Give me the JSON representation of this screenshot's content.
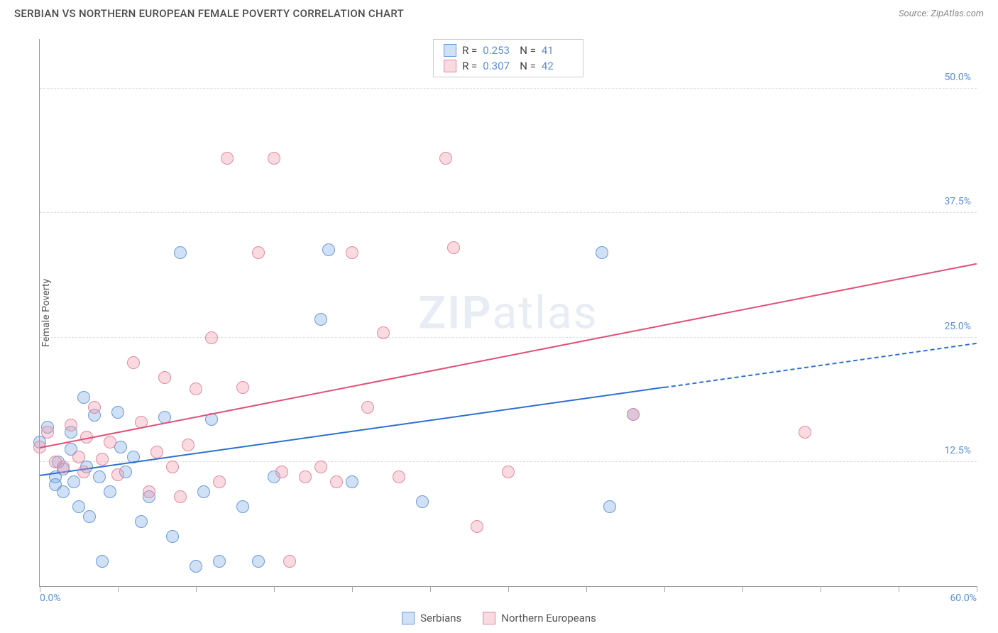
{
  "title": "SERBIAN VS NORTHERN EUROPEAN FEMALE POVERTY CORRELATION CHART",
  "source_label": "Source: ZipAtlas.com",
  "watermark": {
    "bold": "ZIP",
    "light": "atlas"
  },
  "ylabel": "Female Poverty",
  "chart": {
    "type": "scatter",
    "xlim": [
      0,
      60
    ],
    "ylim": [
      0,
      55
    ],
    "x_tick_left": "0.0%",
    "x_tick_right": "60.0%",
    "x_minor_ticks": [
      0,
      5,
      10,
      15,
      20,
      25,
      30,
      35,
      40,
      45,
      50,
      55,
      60
    ],
    "y_ticks": [
      {
        "v": 12.5,
        "label": "12.5%"
      },
      {
        "v": 25.0,
        "label": "25.0%"
      },
      {
        "v": 37.5,
        "label": "37.5%"
      },
      {
        "v": 50.0,
        "label": "50.0%"
      }
    ],
    "point_radius": 9,
    "point_border_width": 1.5,
    "grid_color": "#dddddd",
    "axis_color": "#999999",
    "background": "#ffffff"
  },
  "series": [
    {
      "name": "Serbians",
      "fill": "rgba(120,165,225,0.35)",
      "stroke": "#6a9bd8",
      "trend_color": "#2e6fd0",
      "trend": {
        "x1": 0,
        "y1": 11.2,
        "x2": 60,
        "y2": 24.5,
        "dash_after_x": 40
      },
      "points": [
        [
          0,
          14.5
        ],
        [
          0.5,
          16
        ],
        [
          1,
          11
        ],
        [
          1,
          10.2
        ],
        [
          1.2,
          12.5
        ],
        [
          1.5,
          9.5
        ],
        [
          1.5,
          11.8
        ],
        [
          2,
          13.8
        ],
        [
          2,
          15.5
        ],
        [
          2.2,
          10.5
        ],
        [
          2.5,
          8
        ],
        [
          2.8,
          19
        ],
        [
          3,
          12
        ],
        [
          3.2,
          7
        ],
        [
          3.5,
          17.2
        ],
        [
          3.8,
          11
        ],
        [
          4,
          2.5
        ],
        [
          4.5,
          9.5
        ],
        [
          5,
          17.5
        ],
        [
          5.2,
          14
        ],
        [
          5.5,
          11.5
        ],
        [
          6,
          13
        ],
        [
          6.5,
          6.5
        ],
        [
          7,
          9
        ],
        [
          8,
          17
        ],
        [
          8.5,
          5
        ],
        [
          9,
          33.5
        ],
        [
          10,
          2
        ],
        [
          10.5,
          9.5
        ],
        [
          11,
          16.8
        ],
        [
          11.5,
          2.5
        ],
        [
          13,
          8
        ],
        [
          14,
          2.5
        ],
        [
          15,
          11
        ],
        [
          18,
          26.8
        ],
        [
          18.5,
          33.8
        ],
        [
          20,
          10.5
        ],
        [
          24.5,
          8.5
        ],
        [
          36,
          33.5
        ],
        [
          36.5,
          8
        ],
        [
          38,
          17.3
        ]
      ]
    },
    {
      "name": "Northern Europeans",
      "fill": "rgba(240,150,170,0.35)",
      "stroke": "#e08aa0",
      "trend_color": "#e05078",
      "trend": {
        "x1": 0,
        "y1": 14,
        "x2": 60,
        "y2": 32.5,
        "dash_after_x": 60
      },
      "points": [
        [
          0,
          14
        ],
        [
          0.5,
          15.5
        ],
        [
          1,
          12.5
        ],
        [
          1.5,
          12
        ],
        [
          2,
          16.2
        ],
        [
          2.5,
          13
        ],
        [
          2.8,
          11.5
        ],
        [
          3,
          15
        ],
        [
          3.5,
          18
        ],
        [
          4,
          12.8
        ],
        [
          4.5,
          14.5
        ],
        [
          5,
          11.2
        ],
        [
          6,
          22.5
        ],
        [
          6.5,
          16.5
        ],
        [
          7,
          9.5
        ],
        [
          7.5,
          13.5
        ],
        [
          8,
          21
        ],
        [
          8.5,
          12
        ],
        [
          9,
          9
        ],
        [
          9.5,
          14.2
        ],
        [
          10,
          19.8
        ],
        [
          11,
          25
        ],
        [
          11.5,
          10.5
        ],
        [
          12,
          43
        ],
        [
          13,
          20
        ],
        [
          14,
          33.5
        ],
        [
          15,
          43
        ],
        [
          15.5,
          11.5
        ],
        [
          16,
          2.5
        ],
        [
          17,
          11
        ],
        [
          18,
          12
        ],
        [
          19,
          10.5
        ],
        [
          20,
          33.5
        ],
        [
          21,
          18
        ],
        [
          22,
          25.5
        ],
        [
          23,
          11
        ],
        [
          26,
          43
        ],
        [
          26.5,
          34
        ],
        [
          28,
          6
        ],
        [
          30,
          11.5
        ],
        [
          49,
          15.5
        ],
        [
          38,
          17.3
        ]
      ]
    }
  ],
  "stats": [
    {
      "series": 0,
      "R": "0.253",
      "N": "41"
    },
    {
      "series": 1,
      "R": "0.307",
      "N": "42"
    }
  ],
  "legend": [
    {
      "series": 0,
      "label": "Serbians"
    },
    {
      "series": 1,
      "label": "Northern Europeans"
    }
  ]
}
